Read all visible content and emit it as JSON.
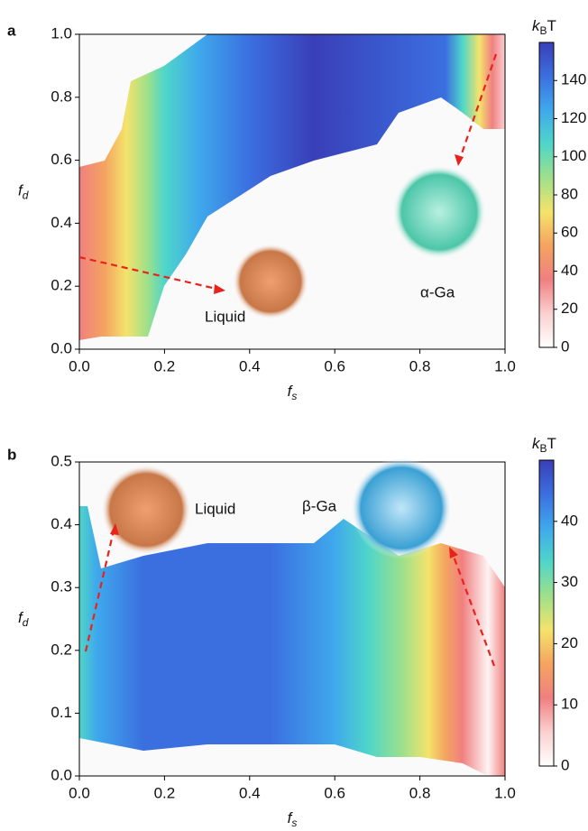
{
  "chart_data": [
    {
      "type": "contour",
      "panel_label": "a",
      "xlabel": "f",
      "xlabel_sub": "s",
      "ylabel": "f",
      "ylabel_sub": "d",
      "xlim": [
        0,
        1
      ],
      "ylim": [
        0,
        1
      ],
      "xticks": [
        {
          "value": 0,
          "label": "0.0"
        },
        0.2,
        0.4,
        0.6,
        0.8,
        {
          "value": 1,
          "label": "1.0"
        }
      ],
      "yticks": [
        {
          "value": 0,
          "label": "0.0"
        },
        0.2,
        0.4,
        0.6,
        0.8,
        {
          "value": 1,
          "label": "1.0"
        }
      ],
      "colorbar_label": "k",
      "colorbar_label_sub": "B",
      "colorbar_label_unit": "T",
      "clim": [
        0,
        160
      ],
      "cticks": [
        0,
        20,
        40,
        60,
        80,
        100,
        120,
        140
      ],
      "colormap": [
        "#ffffff",
        "#fbd0d0",
        "#f08080",
        "#f4a460",
        "#f5e36b",
        "#9fe08a",
        "#4fd6c8",
        "#3fa9ec",
        "#3b6fe0",
        "#3a3fb8"
      ],
      "annotations": [
        "Liquid",
        "α-Ga"
      ]
    },
    {
      "type": "contour",
      "panel_label": "b",
      "xlabel": "f",
      "xlabel_sub": "s",
      "ylabel": "f",
      "ylabel_sub": "d",
      "xlim": [
        0,
        1
      ],
      "ylim": [
        0,
        0.5
      ],
      "xticks": [
        {
          "value": 0,
          "label": "0.0"
        },
        0.2,
        0.4,
        0.6,
        0.8,
        {
          "value": 1,
          "label": "1.0"
        }
      ],
      "yticks": [
        {
          "value": 0,
          "label": "0.0"
        },
        0.1,
        0.2,
        0.3,
        0.4,
        0.5
      ],
      "colorbar_label": "k",
      "colorbar_label_sub": "B",
      "colorbar_label_unit": "T",
      "clim": [
        0,
        50
      ],
      "cticks": [
        0,
        10,
        20,
        30,
        40
      ],
      "colormap": [
        "#ffffff",
        "#fbd0d0",
        "#f08080",
        "#f4a460",
        "#f5e36b",
        "#9fe08a",
        "#4fd6c8",
        "#3fa9ec",
        "#3b6fe0",
        "#3a3fb8"
      ],
      "annotations": [
        "Liquid",
        "β-Ga"
      ]
    }
  ]
}
